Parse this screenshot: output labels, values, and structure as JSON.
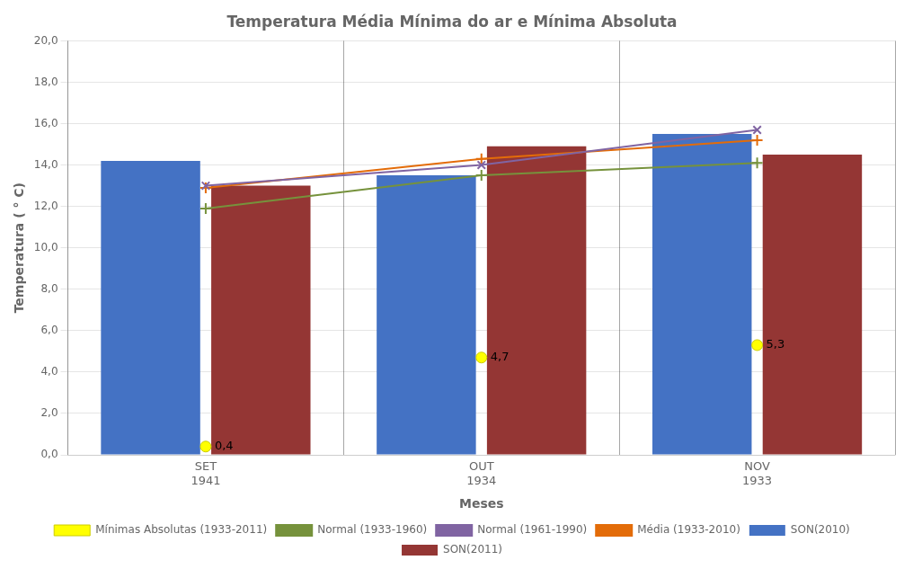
{
  "chart_data": {
    "type": "bar",
    "title": "Temperatura Média Mínima do ar e Mínima Absoluta",
    "xlabel": "Meses",
    "ylabel": "Temperatura ( ° C)",
    "categories": [
      "SET",
      "OUT",
      "NOV"
    ],
    "category_years": [
      "1941",
      "1934",
      "1933"
    ],
    "series": [
      {
        "name": "SON(2010)",
        "type": "bar",
        "color": "#4472C4",
        "values": [
          14.2,
          13.5,
          15.5
        ]
      },
      {
        "name": "SON(2011)",
        "type": "bar",
        "color": "#943634",
        "values": [
          13.0,
          14.9,
          14.5
        ]
      },
      {
        "name": "Normal (1933-1960)",
        "type": "line",
        "color": "#76923C",
        "marker": "plus",
        "values": [
          11.9,
          13.5,
          14.1
        ]
      },
      {
        "name": "Normal (1961-1990)",
        "type": "line",
        "color": "#8064A2",
        "marker": "x",
        "values": [
          13.0,
          14.0,
          15.7
        ]
      },
      {
        "name": "Média (1933-2010)",
        "type": "line",
        "color": "#E36C09",
        "marker": "plus",
        "values": [
          12.9,
          14.3,
          15.2
        ]
      },
      {
        "name": "Mínimas Absolutas (1933-2011)",
        "type": "scatter",
        "color": "#FFFF00",
        "marker": "circle",
        "values": [
          0.4,
          4.7,
          5.3
        ],
        "value_labels": [
          "0,4",
          "4,7",
          "5,3"
        ],
        "data_labels": true
      }
    ],
    "ylim": [
      0,
      20
    ],
    "yticks": [
      {
        "value": 0,
        "label": "0,0"
      },
      {
        "value": 2,
        "label": "2,0"
      },
      {
        "value": 4,
        "label": "4,0"
      },
      {
        "value": 6,
        "label": "6,0"
      },
      {
        "value": 8,
        "label": "8,0"
      },
      {
        "value": 10,
        "label": "10,0"
      },
      {
        "value": 12,
        "label": "12,0"
      },
      {
        "value": 14,
        "label": "14,0"
      },
      {
        "value": 16,
        "label": "16,0"
      },
      {
        "value": 18,
        "label": "18,0"
      },
      {
        "value": 20,
        "label": "20,0"
      }
    ],
    "grid": true,
    "legend": "bottom"
  }
}
